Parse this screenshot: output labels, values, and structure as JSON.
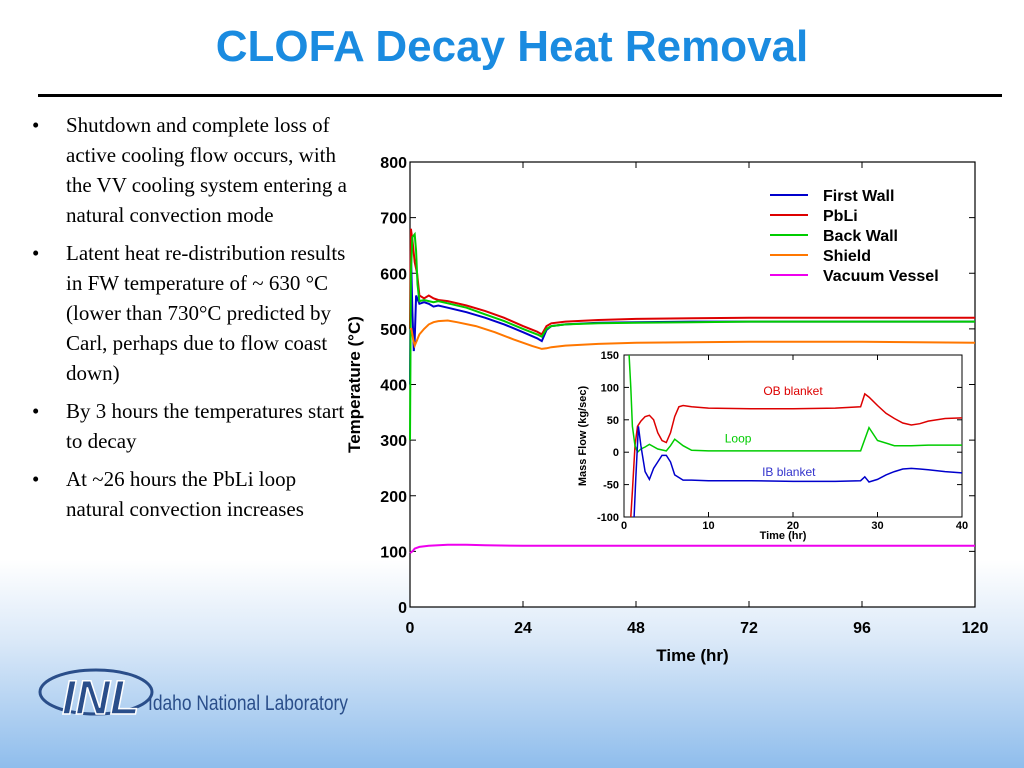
{
  "slide": {
    "title": "CLOFA Decay Heat Removal",
    "bullets": [
      "Shutdown and complete loss of active cooling flow occurs, with the VV cooling system entering a natural convection mode",
      "Latent heat re-distribution results in FW temperature of ~ 630 °C (lower than 730°C predicted by Carl, perhaps due to flow coast down)",
      "By 3 hours the temperatures start to decay",
      "At ~26 hours the PbLi loop natural convection increases"
    ],
    "logo_text": "Idaho National Laboratory",
    "logo_mark": "INL"
  },
  "chart_data": [
    {
      "type": "line",
      "xlabel": "Time (hr)",
      "ylabel": "Temperature (°C)",
      "xlim": [
        0,
        120
      ],
      "ylim": [
        0,
        800
      ],
      "xticks": [
        0,
        24,
        48,
        72,
        96,
        120
      ],
      "yticks": [
        0,
        100,
        200,
        300,
        400,
        500,
        600,
        700,
        800
      ],
      "legend_position": "top-right",
      "series": [
        {
          "name": "First Wall",
          "color": "#0000cc",
          "x": [
            0,
            0.2,
            0.5,
            0.8,
            1,
            1.3,
            2,
            3,
            4,
            5,
            6,
            8,
            12,
            16,
            20,
            24,
            27,
            28,
            29,
            30,
            33,
            40,
            48,
            60,
            72,
            84,
            96,
            108,
            120
          ],
          "y": [
            400,
            640,
            530,
            460,
            480,
            560,
            545,
            548,
            545,
            540,
            542,
            538,
            530,
            520,
            508,
            494,
            483,
            478,
            498,
            505,
            508,
            511,
            512,
            513,
            513,
            513,
            513,
            513,
            513
          ]
        },
        {
          "name": "PbLi",
          "color": "#dd0000",
          "x": [
            0,
            0.2,
            0.5,
            1,
            1.5,
            2,
            3,
            4,
            5,
            6,
            8,
            12,
            16,
            20,
            24,
            27,
            28,
            29,
            30,
            33,
            40,
            48,
            60,
            72,
            84,
            96,
            108,
            120
          ],
          "y": [
            500,
            680,
            660,
            620,
            600,
            560,
            555,
            560,
            555,
            552,
            550,
            542,
            532,
            520,
            505,
            495,
            490,
            505,
            510,
            513,
            516,
            518,
            519,
            520,
            520,
            520,
            520,
            520
          ]
        },
        {
          "name": "Back Wall",
          "color": "#00cc00",
          "x": [
            0,
            0.2,
            0.5,
            1,
            1.3,
            1.6,
            2,
            3,
            4,
            5,
            6,
            8,
            12,
            16,
            20,
            24,
            27,
            28,
            29,
            30,
            33,
            40,
            48,
            60,
            72,
            84,
            96,
            108,
            120
          ],
          "y": [
            300,
            600,
            665,
            670,
            640,
            580,
            550,
            552,
            550,
            548,
            550,
            546,
            538,
            526,
            514,
            500,
            490,
            486,
            500,
            505,
            508,
            510,
            511,
            512,
            513,
            513,
            513,
            513,
            513
          ]
        },
        {
          "name": "Shield",
          "color": "#ff7700",
          "x": [
            0,
            0.3,
            0.7,
            1,
            1.5,
            2,
            3,
            4,
            5,
            6,
            8,
            10,
            14,
            18,
            22,
            26,
            28,
            29,
            30,
            33,
            40,
            48,
            60,
            72,
            84,
            96,
            108,
            120
          ],
          "y": [
            500,
            500,
            480,
            470,
            480,
            490,
            500,
            508,
            512,
            514,
            515,
            512,
            505,
            494,
            481,
            469,
            464,
            465,
            467,
            470,
            473,
            475,
            476,
            477,
            477,
            477,
            476,
            475
          ]
        },
        {
          "name": "Vacuum Vessel",
          "color": "#ee00ee",
          "x": [
            0,
            0.5,
            1,
            2,
            4,
            8,
            12,
            16,
            24,
            36,
            48,
            72,
            96,
            120
          ],
          "y": [
            97,
            100,
            105,
            108,
            110,
            112,
            112,
            111,
            110,
            110,
            110,
            110,
            110,
            110
          ]
        }
      ]
    },
    {
      "type": "line",
      "xlabel": "Time (hr)",
      "ylabel": "Mass Flow (kg/sec)",
      "xlim": [
        0,
        40
      ],
      "ylim": [
        -100,
        150
      ],
      "xticks": [
        0,
        10,
        20,
        30,
        40
      ],
      "yticks": [
        -100,
        -50,
        0,
        50,
        100,
        150
      ],
      "annotations": [
        {
          "text": "OB blanket",
          "color": "#dd0000",
          "x": 20,
          "y": 88
        },
        {
          "text": "Loop",
          "color": "#00cc00",
          "x": 13.5,
          "y": 15
        },
        {
          "text": "IB blanket",
          "color": "#3333cc",
          "x": 19.5,
          "y": -37
        }
      ],
      "series": [
        {
          "name": "OB blanket",
          "color": "#dd0000",
          "x": [
            0.8,
            1,
            1.3,
            1.6,
            2,
            2.5,
            3,
            3.5,
            4,
            4.5,
            5,
            5.5,
            6,
            6.5,
            7,
            8,
            10,
            15,
            20,
            25,
            28,
            28.5,
            29,
            30,
            31,
            32,
            33,
            34,
            35,
            36,
            38,
            40
          ],
          "y": [
            -100,
            -60,
            10,
            40,
            48,
            55,
            57,
            50,
            30,
            18,
            15,
            30,
            55,
            70,
            72,
            70,
            68,
            67,
            67,
            68,
            70,
            90,
            85,
            72,
            60,
            52,
            45,
            42,
            44,
            48,
            52,
            53
          ]
        },
        {
          "name": "Loop",
          "color": "#00cc00",
          "x": [
            0.6,
            0.8,
            1,
            1.3,
            1.6,
            2,
            2.5,
            3,
            4,
            5,
            5.5,
            6,
            7,
            8,
            10,
            15,
            20,
            28,
            28.5,
            29,
            30,
            32,
            34,
            36,
            40
          ],
          "y": [
            150,
            100,
            40,
            10,
            0,
            5,
            8,
            12,
            5,
            2,
            10,
            20,
            10,
            3,
            2,
            2,
            2,
            2,
            20,
            38,
            18,
            10,
            10,
            11,
            11
          ]
        },
        {
          "name": "IB blanket",
          "color": "#0000cc",
          "x": [
            1.2,
            1.4,
            1.7,
            2,
            2.5,
            3,
            3.5,
            4,
            4.5,
            5,
            5.5,
            6,
            7,
            8,
            10,
            15,
            20,
            25,
            28,
            28.5,
            29,
            30,
            31,
            32,
            33,
            34,
            35,
            36,
            38,
            40
          ],
          "y": [
            -100,
            -40,
            40,
            10,
            -30,
            -42,
            -25,
            -15,
            -5,
            -5,
            -15,
            -35,
            -43,
            -43,
            -44,
            -44,
            -45,
            -45,
            -44,
            -38,
            -46,
            -42,
            -35,
            -30,
            -26,
            -25,
            -26,
            -27,
            -30,
            -32
          ]
        }
      ]
    }
  ]
}
